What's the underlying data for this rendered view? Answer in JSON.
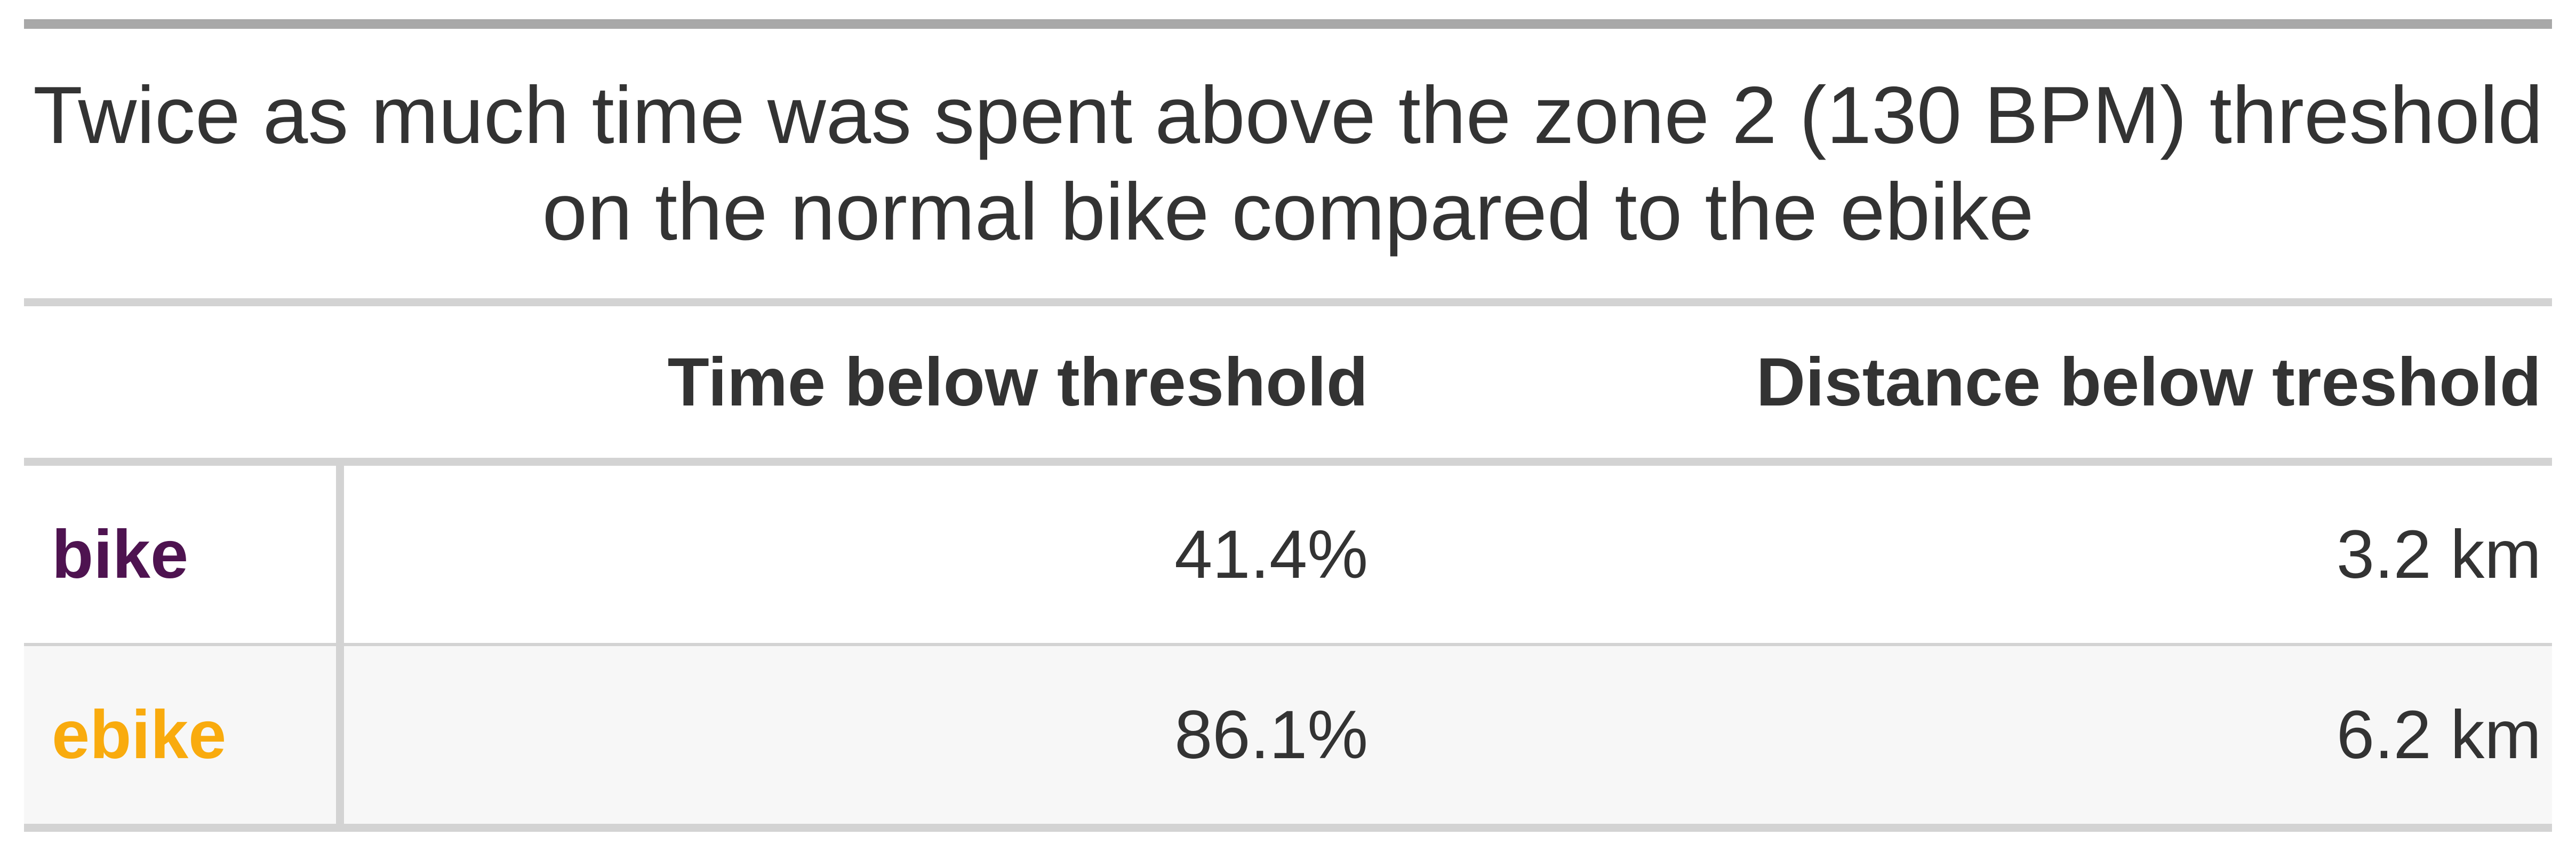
{
  "chart_data": {
    "type": "table",
    "title": "Twice as much time was spent above the zone 2 (130 BPM) threshold on the normal bike compared to the ebike",
    "columns": [
      "",
      "Time below threshold",
      "Distance below treshold"
    ],
    "rows": [
      {
        "label": "bike",
        "label_color": "#4e1350",
        "time_below": "41.4%",
        "distance_below": "3.2 km"
      },
      {
        "label": "ebike",
        "label_color": "#f9ab0e",
        "time_below": "86.1%",
        "distance_below": "6.2 km"
      }
    ]
  }
}
